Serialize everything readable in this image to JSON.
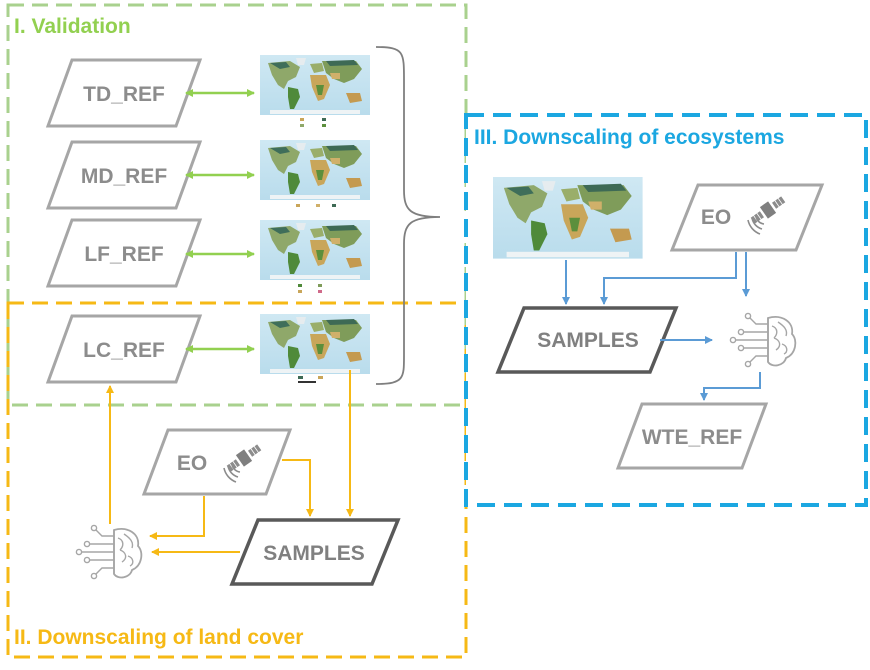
{
  "sections": {
    "validation": {
      "title": "I. Validation",
      "color": "#92d050"
    },
    "land_cover": {
      "title": "II. Downscaling of land cover",
      "color": "#f6b915"
    },
    "ecosystems": {
      "title": "III. Downscaling of ecosystems",
      "color": "#1ba7e1"
    }
  },
  "references": {
    "td": "TD_REF",
    "md": "MD_REF",
    "lf": "LF_REF",
    "lc": "LC_REF",
    "wte": "WTE_REF"
  },
  "inputs": {
    "eo_land_cover": "EO",
    "eo_ecosystems": "EO",
    "samples_land_cover": "SAMPLES",
    "samples_ecosystems": "SAMPLES"
  },
  "icons": [
    "satellite-icon",
    "brain-icon",
    "world-map-icon"
  ],
  "colors": {
    "green_arrow": "#92d050",
    "orange_arrow": "#f6b915",
    "blue_arrow": "#5b9bd5",
    "shape_border": "#a6a6a6",
    "samples_border": "#595959",
    "label_gray": "#8c8c8c"
  }
}
